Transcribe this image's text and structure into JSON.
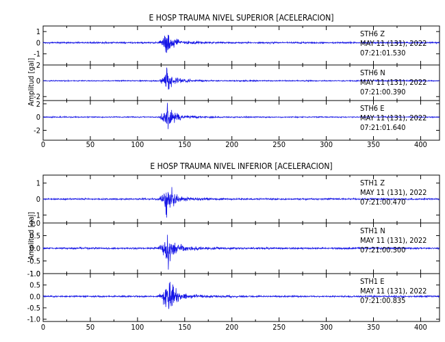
{
  "chart_data": [
    {
      "type": "line",
      "title": "E HOSP TRAUMA NIVEL SUPERIOR [ACELERACION]",
      "ylabel": "Amplitud [gal]",
      "xlim": [
        0,
        420
      ],
      "x_ticks": [
        "0",
        "50",
        "100",
        "150",
        "200",
        "250",
        "300",
        "350",
        "400"
      ],
      "event_onset_s": 122,
      "peak_time_s": 130,
      "series": [
        {
          "station": "STH6",
          "component": "Z",
          "date": "MAY 11 (131), 2022",
          "time": "07:21:01.530",
          "ylim": [
            -2,
            1.5
          ],
          "ticks": [
            "1",
            "0",
            "-1"
          ],
          "peak_amplitude": 1.3,
          "noise_amplitude": 0.06
        },
        {
          "station": "STH6",
          "component": "N",
          "date": "MAY 11 (131), 2022",
          "time": "07:21:00.390",
          "ylim": [
            -2.5,
            2
          ],
          "ticks": [
            "2",
            "0",
            "-2"
          ],
          "peak_amplitude": 1.6,
          "noise_amplitude": 0.06
        },
        {
          "station": "STH6",
          "component": "E",
          "date": "MAY 11 (131), 2022",
          "time": "07:21:01.640",
          "ylim": [
            -3.5,
            2.5
          ],
          "ticks": [
            "2",
            "0",
            "-2"
          ],
          "peak_amplitude": 2.2,
          "noise_amplitude": 0.07
        }
      ]
    },
    {
      "type": "line",
      "title": "E HOSP TRAUMA NIVEL INFERIOR [ACELERACION]",
      "ylabel": "Amplitud [gal]",
      "xlim": [
        0,
        420
      ],
      "x_ticks": [
        "0",
        "50",
        "100",
        "150",
        "200",
        "250",
        "300",
        "350",
        "400"
      ],
      "event_onset_s": 122,
      "peak_time_s": 131,
      "series": [
        {
          "station": "STH1",
          "component": "Z",
          "date": "MAY 11 (131), 2022",
          "time": "07:21:00.470",
          "ylim": [
            -1.5,
            1.5
          ],
          "ticks": [
            "1",
            "0",
            "-1"
          ],
          "peak_amplitude": 1.1,
          "noise_amplitude": 0.04
        },
        {
          "station": "STH1",
          "component": "N",
          "date": "MAY 11 (131), 2022",
          "time": "07:21:00.300",
          "ylim": [
            -1.0,
            1.0
          ],
          "ticks": [
            "1.0",
            "0.5",
            "0.0",
            "-0.5",
            "-1.0"
          ],
          "peak_amplitude": 0.85,
          "noise_amplitude": 0.03
        },
        {
          "station": "STH1",
          "component": "E",
          "date": "MAY 11 (131), 2022",
          "time": "07:21:00.835",
          "ylim": [
            -1.1,
            1.0
          ],
          "ticks": [
            "1.0",
            "0.5",
            "0.0",
            "-0.5",
            "-1.0"
          ],
          "peak_amplitude": 0.9,
          "noise_amplitude": 0.03
        }
      ]
    }
  ],
  "colors": {
    "trace": "#1515e6",
    "axis": "#000000"
  }
}
